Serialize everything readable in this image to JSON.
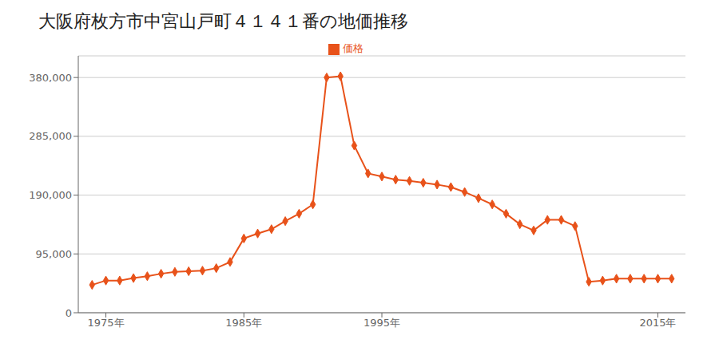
{
  "chart_data": {
    "type": "line",
    "title": "大阪府枚方市中宮山戸町４１４１番の地価推移",
    "x": [
      1974,
      1975,
      1976,
      1977,
      1978,
      1979,
      1980,
      1981,
      1982,
      1983,
      1984,
      1985,
      1986,
      1987,
      1988,
      1989,
      1990,
      1991,
      1992,
      1993,
      1994,
      1995,
      1996,
      1997,
      1998,
      1999,
      2000,
      2001,
      2002,
      2003,
      2004,
      2005,
      2006,
      2007,
      2008,
      2009,
      2010,
      2011,
      2012,
      2013,
      2014,
      2015,
      2016
    ],
    "series": [
      {
        "name": "価格",
        "color": "#E8521A",
        "marker": "diamond",
        "line_style": "solid",
        "values": [
          45000,
          52000,
          52000,
          56000,
          59000,
          63000,
          66000,
          67000,
          68000,
          72000,
          82000,
          120000,
          128000,
          135000,
          148000,
          160000,
          175000,
          380000,
          382000,
          270000,
          225000,
          220000,
          215000,
          213000,
          210000,
          207000,
          203000,
          195000,
          185000,
          175000,
          160000,
          143000,
          133000,
          150000,
          150000,
          140000,
          50000,
          52000,
          55000,
          55000,
          55000,
          55000,
          55000
        ]
      }
    ],
    "xlim": [
      1973,
      2017
    ],
    "xticks": [
      {
        "value": 1975,
        "label": "1975年"
      },
      {
        "value": 1985,
        "label": "1985年"
      },
      {
        "value": 1995,
        "label": "1995年"
      },
      {
        "value": 2015,
        "label": "2015年"
      }
    ],
    "ylim": [
      0,
      415000
    ],
    "yticks": [
      0,
      {
        "value": 95000,
        "label": "95,000"
      },
      {
        "value": 190000,
        "label": "190,000"
      },
      {
        "value": 285000,
        "label": "285,000"
      },
      {
        "value": 380000,
        "label": "380,000"
      }
    ],
    "grid": "y",
    "legend": "top"
  }
}
